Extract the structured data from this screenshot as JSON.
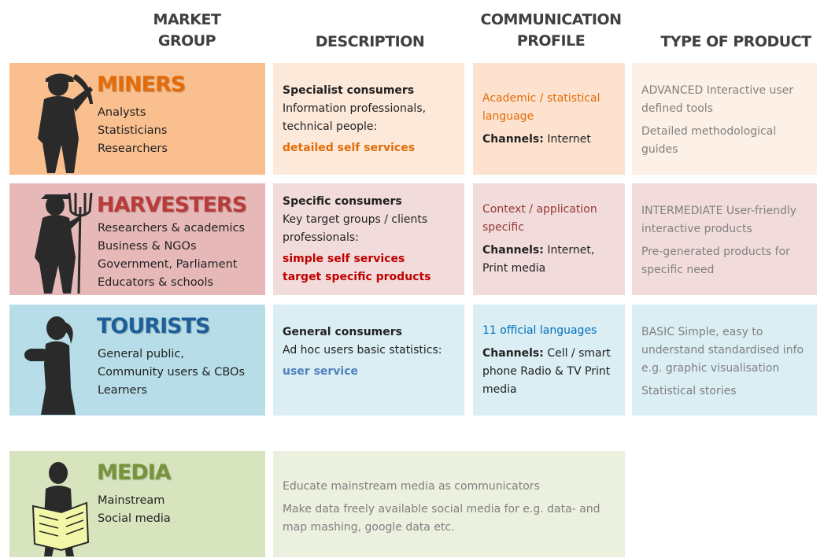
{
  "headers": [
    "MARKET GROUP",
    "DESCRIPTION",
    "COMMUNICATION PROFILE",
    "TYPE OF PRODUCT"
  ],
  "rows": [
    {
      "name": "MINERS",
      "members": [
        "Analysts",
        "Statisticians",
        "Researchers"
      ],
      "description": {
        "heading": "Specialist consumers",
        "text": "Information professionals, technical people:",
        "highlights": [
          "detailed self services"
        ]
      },
      "communication": {
        "language": "Academic / statistical language",
        "channels_label": "Channels:",
        "channels": "Internet"
      },
      "product": [
        "ADVANCED Interactive user defined tools",
        "Detailed methodological guides"
      ]
    },
    {
      "name": "HARVESTERS",
      "members": [
        "Researchers & academics",
        "Business & NGOs",
        "Government, Parliament",
        "Educators & schools"
      ],
      "description": {
        "heading": "Specific consumers",
        "text": "Key target groups / clients professionals:",
        "highlights": [
          "simple self services",
          "target specific products"
        ]
      },
      "communication": {
        "language": "Context / application specific",
        "channels_label": "Channels:",
        "channels": "Internet, Print media"
      },
      "product": [
        "INTERMEDIATE User-friendly interactive products",
        "Pre-generated products for specific need"
      ]
    },
    {
      "name": "TOURISTS",
      "members": [
        "General public,",
        "Community users & CBOs",
        "Learners"
      ],
      "description": {
        "heading": "General consumers",
        "text": "Ad hoc users basic statistics:",
        "highlights": [
          "user service"
        ]
      },
      "communication": {
        "language": "11 official languages",
        "channels_label": "Channels:",
        "channels": "Cell / smart phone  Radio & TV Print media"
      },
      "product": [
        "BASIC Simple, easy to understand standardised info e.g. graphic visualisation",
        "Statistical stories"
      ]
    }
  ],
  "media": {
    "name": "MEDIA",
    "members": [
      "Mainstream",
      "Social media"
    ],
    "notes": [
      "Educate  mainstream media as communicators",
      "Make data freely available social media  for e.g. data- and map mashing, google data etc."
    ]
  }
}
